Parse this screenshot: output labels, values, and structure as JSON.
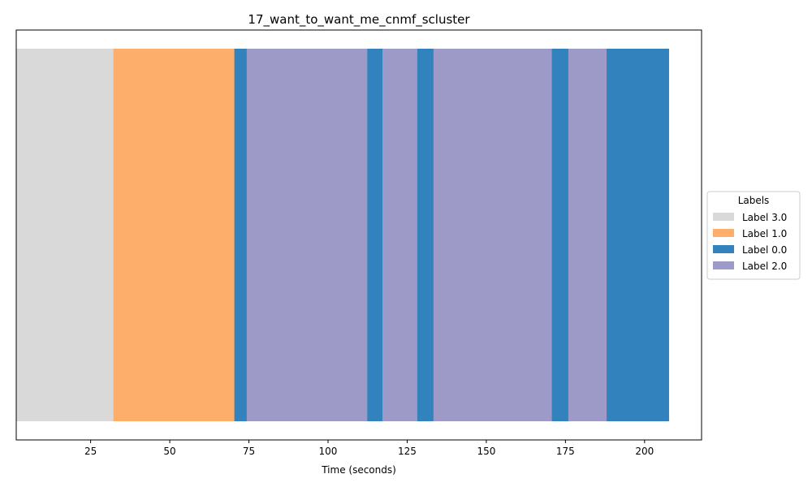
{
  "chart_data": {
    "type": "bar",
    "orientation": "horizontal-timeline",
    "title": "17_want_to_want_me_cnmf_scluster",
    "xlabel": "Time (seconds)",
    "ylabel": "",
    "xlim": [
      1.5,
      218
    ],
    "xticks": [
      25,
      50,
      75,
      100,
      125,
      150,
      175,
      200
    ],
    "yticks": [],
    "legend": {
      "title": "Labels",
      "placement": "center-right-outside",
      "entries": [
        {
          "label": "Label 3.0",
          "color": "#d9d9d9"
        },
        {
          "label": "Label 1.0",
          "color": "#fdae6b"
        },
        {
          "label": "Label 0.0",
          "color": "#3182bd"
        },
        {
          "label": "Label 2.0",
          "color": "#9e9ac8"
        }
      ]
    },
    "segments": [
      {
        "start": 1.5,
        "end": 32.2,
        "label": "Label 3.0"
      },
      {
        "start": 32.2,
        "end": 70.4,
        "label": "Label 1.0"
      },
      {
        "start": 70.4,
        "end": 74.3,
        "label": "Label 0.0"
      },
      {
        "start": 74.3,
        "end": 112.4,
        "label": "Label 2.0"
      },
      {
        "start": 112.4,
        "end": 117.2,
        "label": "Label 0.0"
      },
      {
        "start": 117.2,
        "end": 128.2,
        "label": "Label 2.0"
      },
      {
        "start": 128.2,
        "end": 133.3,
        "label": "Label 0.0"
      },
      {
        "start": 133.3,
        "end": 170.7,
        "label": "Label 2.0"
      },
      {
        "start": 170.7,
        "end": 175.9,
        "label": "Label 0.0"
      },
      {
        "start": 175.9,
        "end": 188.0,
        "label": "Label 2.0"
      },
      {
        "start": 188.0,
        "end": 207.6,
        "label": "Label 0.0"
      }
    ]
  }
}
